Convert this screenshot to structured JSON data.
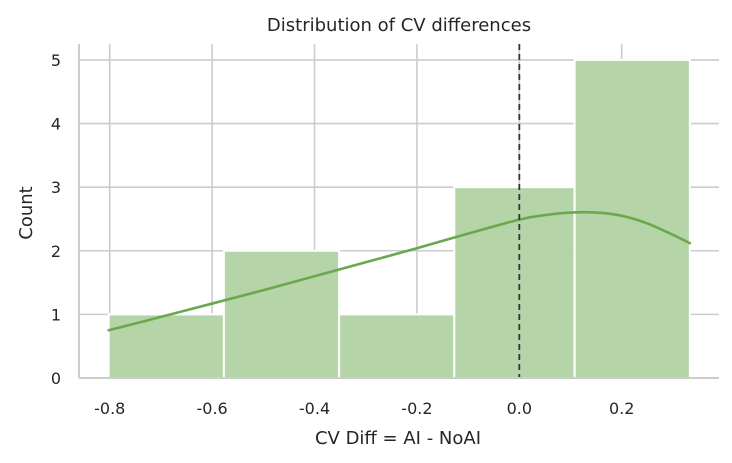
{
  "chart_data": {
    "type": "bar",
    "title": "Distribution of CV differences",
    "xlabel": "CV Diff = AI - NoAI",
    "ylabel": "Count",
    "xlim": [
      -0.86,
      0.39
    ],
    "ylim": [
      0,
      5.25
    ],
    "xticks": [
      -0.8,
      -0.6,
      -0.4,
      -0.2,
      0.0,
      0.2
    ],
    "xtick_labels": [
      "-0.8",
      "-0.6",
      "-0.4",
      "-0.2",
      "0.0",
      "0.2"
    ],
    "yticks": [
      0,
      1,
      2,
      3,
      4,
      5
    ],
    "ytick_labels": [
      "0",
      "1",
      "2",
      "3",
      "4",
      "5"
    ],
    "grid": true,
    "bar_color": "#b4d3a6",
    "line_color": "#6aa84f",
    "bins": [
      {
        "x0": -0.802,
        "x1": -0.577,
        "count": 1
      },
      {
        "x0": -0.577,
        "x1": -0.352,
        "count": 2
      },
      {
        "x0": -0.352,
        "x1": -0.127,
        "count": 1
      },
      {
        "x0": -0.127,
        "x1": 0.108,
        "count": 3
      },
      {
        "x0": 0.108,
        "x1": 0.333,
        "count": 5
      }
    ],
    "kde": {
      "x": [
        -0.802,
        -0.7,
        -0.6,
        -0.5,
        -0.4,
        -0.3,
        -0.2,
        -0.1,
        0.0,
        0.05,
        0.1,
        0.15,
        0.2,
        0.25,
        0.3,
        0.333
      ],
      "y": [
        0.75,
        0.96,
        1.17,
        1.38,
        1.6,
        1.82,
        2.04,
        2.27,
        2.49,
        2.56,
        2.6,
        2.6,
        2.55,
        2.43,
        2.25,
        2.12
      ]
    },
    "reference_line": {
      "x": 0.0,
      "style": "dashed",
      "color": "#333333"
    }
  }
}
